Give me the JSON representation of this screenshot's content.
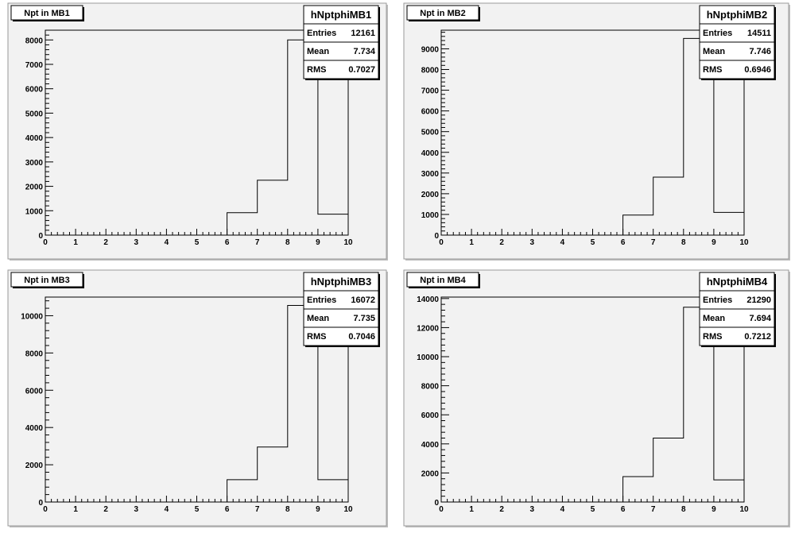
{
  "chart_data": [
    {
      "type": "histogram",
      "title": "Npt in MB1",
      "xlim": [
        0,
        10
      ],
      "ylim": [
        0,
        8400
      ],
      "x_ticks": [
        0,
        1,
        2,
        3,
        4,
        5,
        6,
        7,
        8,
        9,
        10
      ],
      "y_ticks": [
        0,
        1000,
        2000,
        3000,
        4000,
        5000,
        6000,
        7000,
        8000
      ],
      "bin_edges": [
        0,
        1,
        2,
        3,
        4,
        5,
        6,
        7,
        8,
        9,
        10
      ],
      "values": [
        0,
        0,
        0,
        0,
        0,
        0,
        920,
        2250,
        8000,
        860
      ],
      "stats": {
        "name": "hNptphiMB1",
        "rows": [
          {
            "label": "Entries",
            "value": "12161"
          },
          {
            "label": "Mean",
            "value": "7.734"
          },
          {
            "label": "RMS",
            "value": "0.7027"
          }
        ]
      }
    },
    {
      "type": "histogram",
      "title": "Npt in MB2",
      "xlim": [
        0,
        10
      ],
      "ylim": [
        0,
        9900
      ],
      "x_ticks": [
        0,
        1,
        2,
        3,
        4,
        5,
        6,
        7,
        8,
        9,
        10
      ],
      "y_ticks": [
        0,
        1000,
        2000,
        3000,
        4000,
        5000,
        6000,
        7000,
        8000,
        9000
      ],
      "bin_edges": [
        0,
        1,
        2,
        3,
        4,
        5,
        6,
        7,
        8,
        9,
        10
      ],
      "values": [
        0,
        0,
        0,
        0,
        0,
        0,
        970,
        2800,
        9500,
        1100
      ],
      "stats": {
        "name": "hNptphiMB2",
        "rows": [
          {
            "label": "Entries",
            "value": "14511"
          },
          {
            "label": "Mean",
            "value": "7.746"
          },
          {
            "label": "RMS",
            "value": "0.6946"
          }
        ]
      }
    },
    {
      "type": "histogram",
      "title": "Npt in MB3",
      "xlim": [
        0,
        10
      ],
      "ylim": [
        0,
        11000
      ],
      "x_ticks": [
        0,
        1,
        2,
        3,
        4,
        5,
        6,
        7,
        8,
        9,
        10
      ],
      "y_ticks": [
        0,
        2000,
        4000,
        6000,
        8000,
        10000
      ],
      "bin_edges": [
        0,
        1,
        2,
        3,
        4,
        5,
        6,
        7,
        8,
        9,
        10
      ],
      "values": [
        0,
        0,
        0,
        0,
        0,
        0,
        1200,
        2950,
        10550,
        1200
      ],
      "stats": {
        "name": "hNptphiMB3",
        "rows": [
          {
            "label": "Entries",
            "value": "16072"
          },
          {
            "label": "Mean",
            "value": "7.735"
          },
          {
            "label": "RMS",
            "value": "0.7046"
          }
        ]
      }
    },
    {
      "type": "histogram",
      "title": "Npt in MB4",
      "xlim": [
        0,
        10
      ],
      "ylim": [
        0,
        14100
      ],
      "x_ticks": [
        0,
        1,
        2,
        3,
        4,
        5,
        6,
        7,
        8,
        9,
        10
      ],
      "y_ticks": [
        0,
        2000,
        4000,
        6000,
        8000,
        10000,
        12000,
        14000
      ],
      "bin_edges": [
        0,
        1,
        2,
        3,
        4,
        5,
        6,
        7,
        8,
        9,
        10
      ],
      "values": [
        0,
        0,
        0,
        0,
        0,
        0,
        1750,
        4400,
        13400,
        1520
      ],
      "stats": {
        "name": "hNptphiMB4",
        "rows": [
          {
            "label": "Entries",
            "value": "21290"
          },
          {
            "label": "Mean",
            "value": "7.694"
          },
          {
            "label": "RMS",
            "value": "0.7212"
          }
        ]
      }
    }
  ]
}
